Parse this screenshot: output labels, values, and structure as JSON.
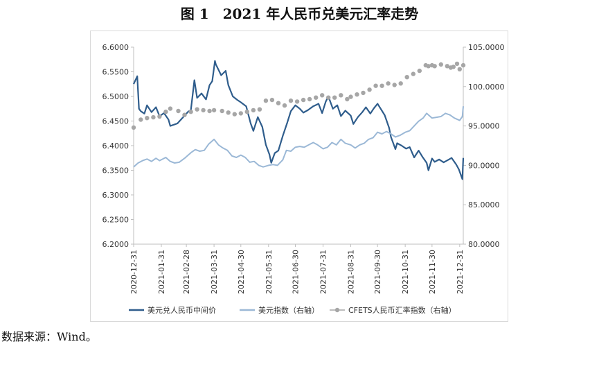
{
  "title": "图 1　2021 年人民币兑美元汇率走势",
  "source": "数据来源：Wind。",
  "chart_data": {
    "type": "line",
    "title": "",
    "xlabel": "",
    "ylabel": "",
    "grid": false,
    "legend_position": "bottom",
    "x_start": "2020-12-31",
    "x_end": "2022-01-04",
    "x_tick_labels": [
      "2020-12-31",
      "2021-01-31",
      "2021-02-28",
      "2021-03-31",
      "2021-04-30",
      "2021-05-31",
      "2021-06-30",
      "2021-07-31",
      "2021-08-31",
      "2021-09-30",
      "2021-10-31",
      "2021-11-30",
      "2021-12-31"
    ],
    "left_axis": {
      "min": 6.2,
      "max": 6.6,
      "step": 0.05,
      "tick_labels": [
        "6.2000",
        "6.2500",
        "6.3000",
        "6.3500",
        "6.4000",
        "6.4500",
        "6.5000",
        "6.5500",
        "6.6000"
      ]
    },
    "right_axis": {
      "min": 80,
      "max": 105,
      "step": 5,
      "tick_labels": [
        "80.0000",
        "85.0000",
        "90.0000",
        "95.0000",
        "100.0000",
        "105.0000"
      ]
    },
    "series": [
      {
        "name": "美元兑人民币中间价",
        "axis": "left",
        "color": "#2f5d8c",
        "style": "line",
        "points": [
          [
            "2020-12-31",
            6.525
          ],
          [
            "2021-01-04",
            6.541
          ],
          [
            "2021-01-06",
            6.475
          ],
          [
            "2021-01-08",
            6.47
          ],
          [
            "2021-01-12",
            6.465
          ],
          [
            "2021-01-15",
            6.482
          ],
          [
            "2021-01-20",
            6.468
          ],
          [
            "2021-01-25",
            6.478
          ],
          [
            "2021-01-29",
            6.46
          ],
          [
            "2021-02-03",
            6.466
          ],
          [
            "2021-02-08",
            6.453
          ],
          [
            "2021-02-10",
            6.44
          ],
          [
            "2021-02-18",
            6.445
          ],
          [
            "2021-02-23",
            6.455
          ],
          [
            "2021-02-26",
            6.461
          ],
          [
            "2021-03-02",
            6.469
          ],
          [
            "2021-03-05",
            6.472
          ],
          [
            "2021-03-09",
            6.533
          ],
          [
            "2021-03-12",
            6.497
          ],
          [
            "2021-03-17",
            6.506
          ],
          [
            "2021-03-22",
            6.494
          ],
          [
            "2021-03-26",
            6.523
          ],
          [
            "2021-03-29",
            6.531
          ],
          [
            "2021-04-01",
            6.572
          ],
          [
            "2021-04-02",
            6.565
          ],
          [
            "2021-04-08",
            6.543
          ],
          [
            "2021-04-13",
            6.552
          ],
          [
            "2021-04-16",
            6.523
          ],
          [
            "2021-04-21",
            6.5
          ],
          [
            "2021-04-26",
            6.493
          ],
          [
            "2021-04-30",
            6.488
          ],
          [
            "2021-05-06",
            6.48
          ],
          [
            "2021-05-11",
            6.445
          ],
          [
            "2021-05-14",
            6.43
          ],
          [
            "2021-05-19",
            6.458
          ],
          [
            "2021-05-24",
            6.438
          ],
          [
            "2021-05-28",
            6.402
          ],
          [
            "2021-06-01",
            6.382
          ],
          [
            "2021-06-03",
            6.365
          ],
          [
            "2021-06-07",
            6.385
          ],
          [
            "2021-06-11",
            6.39
          ],
          [
            "2021-06-16",
            6.42
          ],
          [
            "2021-06-21",
            6.447
          ],
          [
            "2021-06-25",
            6.47
          ],
          [
            "2021-06-30",
            6.482
          ],
          [
            "2021-07-05",
            6.475
          ],
          [
            "2021-07-09",
            6.467
          ],
          [
            "2021-07-14",
            6.472
          ],
          [
            "2021-07-20",
            6.48
          ],
          [
            "2021-07-26",
            6.485
          ],
          [
            "2021-07-30",
            6.466
          ],
          [
            "2021-08-03",
            6.489
          ],
          [
            "2021-08-06",
            6.5
          ],
          [
            "2021-08-11",
            6.475
          ],
          [
            "2021-08-16",
            6.482
          ],
          [
            "2021-08-20",
            6.46
          ],
          [
            "2021-08-25",
            6.471
          ],
          [
            "2021-08-31",
            6.461
          ],
          [
            "2021-09-03",
            6.444
          ],
          [
            "2021-09-08",
            6.458
          ],
          [
            "2021-09-13",
            6.468
          ],
          [
            "2021-09-17",
            6.478
          ],
          [
            "2021-09-22",
            6.465
          ],
          [
            "2021-09-26",
            6.476
          ],
          [
            "2021-09-30",
            6.485
          ],
          [
            "2021-10-08",
            6.462
          ],
          [
            "2021-10-13",
            6.436
          ],
          [
            "2021-10-15",
            6.418
          ],
          [
            "2021-10-20",
            6.393
          ],
          [
            "2021-10-22",
            6.405
          ],
          [
            "2021-10-27",
            6.4
          ],
          [
            "2021-11-01",
            6.394
          ],
          [
            "2021-11-05",
            6.397
          ],
          [
            "2021-11-10",
            6.376
          ],
          [
            "2021-11-15",
            6.39
          ],
          [
            "2021-11-19",
            6.378
          ],
          [
            "2021-11-24",
            6.365
          ],
          [
            "2021-11-26",
            6.35
          ],
          [
            "2021-11-30",
            6.374
          ],
          [
            "2021-12-03",
            6.367
          ],
          [
            "2021-12-08",
            6.372
          ],
          [
            "2021-12-13",
            6.366
          ],
          [
            "2021-12-17",
            6.37
          ],
          [
            "2021-12-22",
            6.375
          ],
          [
            "2021-12-27",
            6.362
          ],
          [
            "2021-12-30",
            6.352
          ],
          [
            "2022-01-03",
            6.332
          ],
          [
            "2022-01-04",
            6.375
          ]
        ]
      },
      {
        "name": "美元指数（右轴）",
        "axis": "right",
        "color": "#9bb8d6",
        "style": "line",
        "points": [
          [
            "2020-12-31",
            89.8
          ],
          [
            "2021-01-05",
            90.3
          ],
          [
            "2021-01-10",
            90.6
          ],
          [
            "2021-01-15",
            90.8
          ],
          [
            "2021-01-20",
            90.5
          ],
          [
            "2021-01-25",
            90.9
          ],
          [
            "2021-01-29",
            90.6
          ],
          [
            "2021-02-05",
            91.0
          ],
          [
            "2021-02-10",
            90.5
          ],
          [
            "2021-02-15",
            90.3
          ],
          [
            "2021-02-20",
            90.4
          ],
          [
            "2021-02-26",
            90.9
          ],
          [
            "2021-03-05",
            91.6
          ],
          [
            "2021-03-10",
            92.0
          ],
          [
            "2021-03-15",
            91.8
          ],
          [
            "2021-03-20",
            91.9
          ],
          [
            "2021-03-25",
            92.7
          ],
          [
            "2021-03-31",
            93.3
          ],
          [
            "2021-04-05",
            92.6
          ],
          [
            "2021-04-10",
            92.2
          ],
          [
            "2021-04-15",
            91.9
          ],
          [
            "2021-04-20",
            91.2
          ],
          [
            "2021-04-25",
            91.0
          ],
          [
            "2021-04-30",
            91.3
          ],
          [
            "2021-05-05",
            91.0
          ],
          [
            "2021-05-10",
            90.4
          ],
          [
            "2021-05-15",
            90.5
          ],
          [
            "2021-05-20",
            90.0
          ],
          [
            "2021-05-25",
            89.8
          ],
          [
            "2021-05-31",
            90.0
          ],
          [
            "2021-06-05",
            90.1
          ],
          [
            "2021-06-10",
            90.0
          ],
          [
            "2021-06-16",
            90.7
          ],
          [
            "2021-06-20",
            91.9
          ],
          [
            "2021-06-25",
            91.8
          ],
          [
            "2021-06-30",
            92.3
          ],
          [
            "2021-07-05",
            92.4
          ],
          [
            "2021-07-10",
            92.3
          ],
          [
            "2021-07-15",
            92.6
          ],
          [
            "2021-07-20",
            92.9
          ],
          [
            "2021-07-25",
            92.6
          ],
          [
            "2021-07-31",
            92.1
          ],
          [
            "2021-08-05",
            92.3
          ],
          [
            "2021-08-10",
            92.9
          ],
          [
            "2021-08-15",
            92.6
          ],
          [
            "2021-08-20",
            93.3
          ],
          [
            "2021-08-25",
            92.8
          ],
          [
            "2021-08-31",
            92.6
          ],
          [
            "2021-09-05",
            92.2
          ],
          [
            "2021-09-10",
            92.6
          ],
          [
            "2021-09-15",
            92.8
          ],
          [
            "2021-09-20",
            93.3
          ],
          [
            "2021-09-25",
            93.5
          ],
          [
            "2021-09-30",
            94.2
          ],
          [
            "2021-10-05",
            94.0
          ],
          [
            "2021-10-10",
            94.3
          ],
          [
            "2021-10-15",
            94.0
          ],
          [
            "2021-10-20",
            93.6
          ],
          [
            "2021-10-25",
            93.8
          ],
          [
            "2021-10-31",
            94.2
          ],
          [
            "2021-11-05",
            94.4
          ],
          [
            "2021-11-10",
            95.0
          ],
          [
            "2021-11-15",
            95.6
          ],
          [
            "2021-11-20",
            96.0
          ],
          [
            "2021-11-24",
            96.6
          ],
          [
            "2021-11-30",
            96.0
          ],
          [
            "2021-12-05",
            96.1
          ],
          [
            "2021-12-10",
            96.2
          ],
          [
            "2021-12-15",
            96.6
          ],
          [
            "2021-12-20",
            96.4
          ],
          [
            "2021-12-25",
            96.0
          ],
          [
            "2021-12-31",
            95.7
          ],
          [
            "2022-01-03",
            96.2
          ],
          [
            "2022-01-04",
            97.5
          ]
        ]
      },
      {
        "name": "CFETS人民币汇率指数（右轴）",
        "axis": "right",
        "color": "#a6a6a6",
        "style": "dots",
        "points": [
          [
            "2020-12-31",
            94.8
          ],
          [
            "2021-01-08",
            95.8
          ],
          [
            "2021-01-15",
            96.0
          ],
          [
            "2021-01-22",
            96.1
          ],
          [
            "2021-01-29",
            96.2
          ],
          [
            "2021-02-05",
            96.8
          ],
          [
            "2021-02-10",
            97.2
          ],
          [
            "2021-02-19",
            96.9
          ],
          [
            "2021-02-26",
            96.4
          ],
          [
            "2021-03-05",
            96.8
          ],
          [
            "2021-03-12",
            97.1
          ],
          [
            "2021-03-19",
            97.0
          ],
          [
            "2021-03-26",
            96.9
          ],
          [
            "2021-03-31",
            97.0
          ],
          [
            "2021-04-09",
            96.9
          ],
          [
            "2021-04-16",
            96.7
          ],
          [
            "2021-04-23",
            96.5
          ],
          [
            "2021-04-30",
            96.6
          ],
          [
            "2021-05-07",
            96.8
          ],
          [
            "2021-05-14",
            97.0
          ],
          [
            "2021-05-21",
            97.1
          ],
          [
            "2021-05-28",
            98.2
          ],
          [
            "2021-06-04",
            98.3
          ],
          [
            "2021-06-11",
            97.9
          ],
          [
            "2021-06-18",
            97.6
          ],
          [
            "2021-06-25",
            98.2
          ],
          [
            "2021-07-02",
            98.1
          ],
          [
            "2021-07-09",
            98.3
          ],
          [
            "2021-07-16",
            98.4
          ],
          [
            "2021-07-23",
            98.6
          ],
          [
            "2021-07-30",
            98.9
          ],
          [
            "2021-08-06",
            98.6
          ],
          [
            "2021-08-13",
            98.6
          ],
          [
            "2021-08-20",
            98.9
          ],
          [
            "2021-08-27",
            98.4
          ],
          [
            "2021-08-31",
            98.7
          ],
          [
            "2021-09-07",
            99.0
          ],
          [
            "2021-09-14",
            99.2
          ],
          [
            "2021-09-21",
            99.6
          ],
          [
            "2021-09-28",
            100.1
          ],
          [
            "2021-10-05",
            100.1
          ],
          [
            "2021-10-12",
            100.4
          ],
          [
            "2021-10-19",
            100.2
          ],
          [
            "2021-10-26",
            100.4
          ],
          [
            "2021-11-02",
            101.2
          ],
          [
            "2021-11-09",
            101.6
          ],
          [
            "2021-11-16",
            102.0
          ],
          [
            "2021-11-23",
            102.7
          ],
          [
            "2021-11-26",
            102.6
          ],
          [
            "2021-11-30",
            102.7
          ],
          [
            "2021-12-03",
            102.6
          ],
          [
            "2021-12-10",
            102.8
          ],
          [
            "2021-12-17",
            102.6
          ],
          [
            "2021-12-21",
            102.4
          ],
          [
            "2021-12-24",
            102.5
          ],
          [
            "2021-12-28",
            102.9
          ],
          [
            "2021-12-31",
            102.2
          ],
          [
            "2022-01-04",
            102.7
          ]
        ]
      }
    ]
  }
}
